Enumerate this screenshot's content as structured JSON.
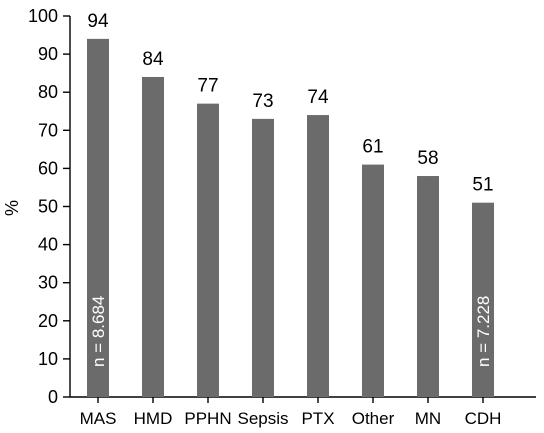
{
  "chart_data": {
    "type": "bar",
    "title": "",
    "xlabel": "",
    "ylabel": "%",
    "ylim": [
      0,
      100
    ],
    "yticks": [
      0,
      10,
      20,
      30,
      40,
      50,
      60,
      70,
      80,
      90,
      100
    ],
    "grid": false,
    "legend": "none",
    "bar_color": "#6b6b6b",
    "categories": [
      "MAS",
      "HMD",
      "PPHN",
      "Sepsis",
      "PTX",
      "Other",
      "MN",
      "CDH"
    ],
    "values": [
      94,
      84,
      77,
      73,
      74,
      61,
      58,
      51
    ],
    "data_labels": [
      "94",
      "84",
      "77",
      "73",
      "74",
      "61",
      "58",
      "51"
    ],
    "annotations": [
      {
        "category": "MAS",
        "text": "n = 8.684"
      },
      {
        "category": "CDH",
        "text": "n = 7.228"
      }
    ]
  }
}
